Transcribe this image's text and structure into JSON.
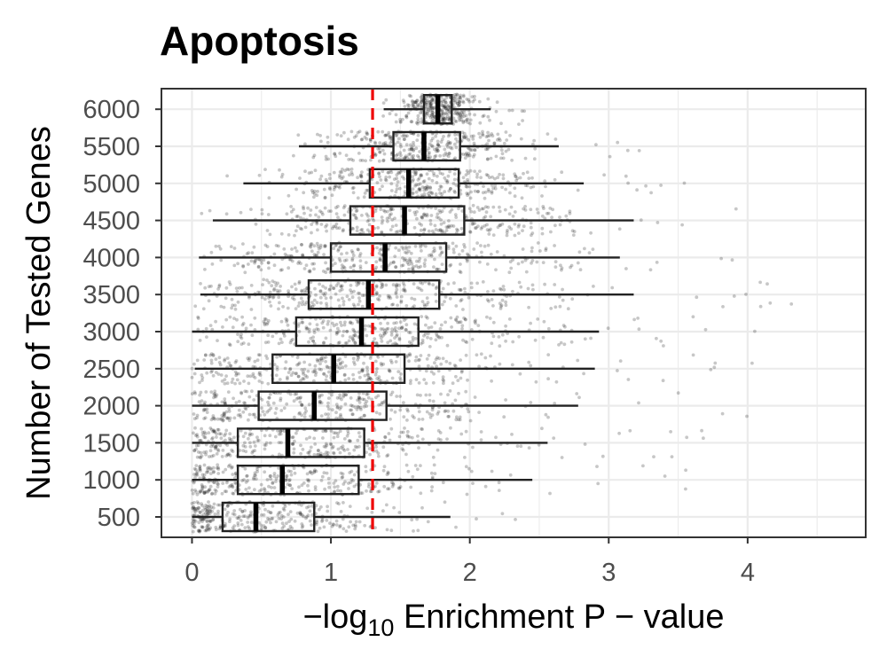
{
  "chart_data": {
    "type": "box-jitter",
    "title": "Apoptosis",
    "xlabel": {
      "prefix": "−log",
      "subscript": "10",
      "suffix": " Enrichment P − value"
    },
    "ylabel": "Number of Tested Genes",
    "xlim": [
      -0.22,
      4.85
    ],
    "x_ticks": [
      0,
      1,
      2,
      3,
      4
    ],
    "categories": [
      "500",
      "1000",
      "1500",
      "2000",
      "2500",
      "3000",
      "3500",
      "4000",
      "4500",
      "5000",
      "5500",
      "6000"
    ],
    "boxes": [
      {
        "category": "500",
        "whisker_low": 0.0,
        "q1": 0.22,
        "median": 0.46,
        "q3": 0.88,
        "whisker_high": 1.86
      },
      {
        "category": "1000",
        "whisker_low": 0.0,
        "q1": 0.33,
        "median": 0.65,
        "q3": 1.2,
        "whisker_high": 2.45
      },
      {
        "category": "1500",
        "whisker_low": 0.0,
        "q1": 0.33,
        "median": 0.69,
        "q3": 1.24,
        "whisker_high": 2.56
      },
      {
        "category": "2000",
        "whisker_low": 0.0,
        "q1": 0.48,
        "median": 0.88,
        "q3": 1.4,
        "whisker_high": 2.78
      },
      {
        "category": "2500",
        "whisker_low": 0.02,
        "q1": 0.58,
        "median": 1.02,
        "q3": 1.53,
        "whisker_high": 2.9
      },
      {
        "category": "3000",
        "whisker_low": 0.0,
        "q1": 0.75,
        "median": 1.22,
        "q3": 1.63,
        "whisker_high": 2.93
      },
      {
        "category": "3500",
        "whisker_low": 0.06,
        "q1": 0.84,
        "median": 1.27,
        "q3": 1.78,
        "whisker_high": 3.18
      },
      {
        "category": "4000",
        "whisker_low": 0.05,
        "q1": 1.0,
        "median": 1.39,
        "q3": 1.83,
        "whisker_high": 3.08
      },
      {
        "category": "4500",
        "whisker_low": 0.15,
        "q1": 1.14,
        "median": 1.53,
        "q3": 1.96,
        "whisker_high": 3.18
      },
      {
        "category": "5000",
        "whisker_low": 0.37,
        "q1": 1.28,
        "median": 1.56,
        "q3": 1.92,
        "whisker_high": 2.82
      },
      {
        "category": "5500",
        "whisker_low": 0.77,
        "q1": 1.45,
        "median": 1.67,
        "q3": 1.93,
        "whisker_high": 2.64
      },
      {
        "category": "6000",
        "whisker_low": 1.38,
        "q1": 1.67,
        "median": 1.77,
        "q3": 1.87,
        "whisker_high": 2.15
      }
    ],
    "points_per_category": 330,
    "reference_line": {
      "x": 1.3,
      "style": "dashed",
      "color": "#ee0000"
    },
    "colors": {
      "points": "#000000",
      "box_stroke": "#222222",
      "grid": "#ebebeb",
      "panel_border": "#333333"
    },
    "grid": true,
    "legend": "none"
  }
}
